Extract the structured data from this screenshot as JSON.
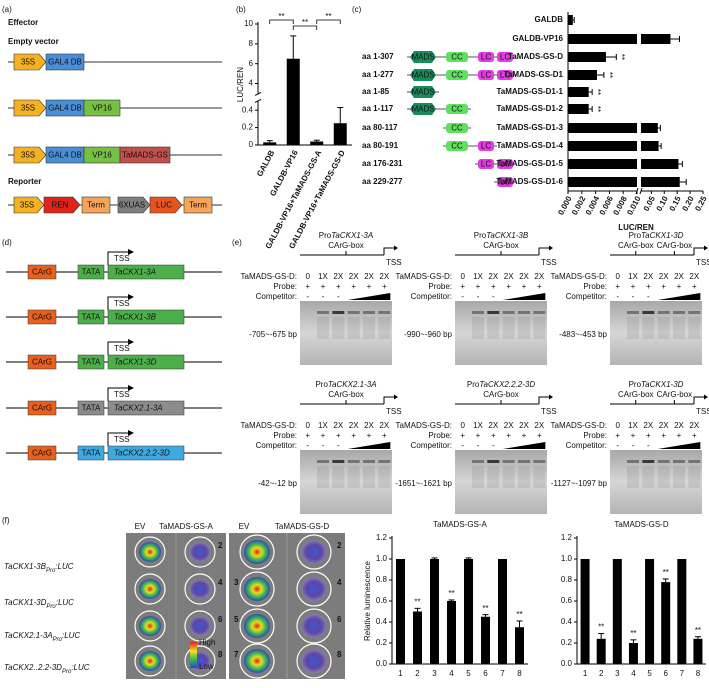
{
  "panel_labels": [
    "(a)",
    "(b)",
    "(c)",
    "(d)",
    "(e)",
    "(f)"
  ],
  "panel_a": {
    "effector": "Effector",
    "empty_vector": "Empty vector",
    "effectors": [
      [
        "35S",
        "GAL4 DB"
      ],
      [
        "35S",
        "GAL4 DB",
        "VP16"
      ],
      [
        "35S",
        "GAL4 DB",
        "VP16",
        "TaMADS-GS"
      ]
    ],
    "reporter": "Reporter",
    "reporter_parts": [
      "35S",
      "REN",
      "Term",
      "6XUAS",
      "LUC",
      "Term"
    ]
  },
  "panel_c_constructs": [
    {
      "label": "aa 1-307",
      "domains": [
        "MADS",
        "CC",
        "LC",
        "LC"
      ]
    },
    {
      "label": "aa 1-277",
      "domains": [
        "MADS",
        "CC",
        "LC",
        "LC"
      ]
    },
    {
      "label": "aa 1-85",
      "domains": [
        "MADS"
      ]
    },
    {
      "label": "aa 1-117",
      "domains": [
        "MADS",
        "CC"
      ]
    },
    {
      "label": "aa 80-117",
      "domains": [
        "CC"
      ]
    },
    {
      "label": "aa 80-191",
      "domains": [
        "CC",
        "LC"
      ]
    },
    {
      "label": "aa 176-231",
      "domains": [
        "LC",
        "LC"
      ]
    },
    {
      "label": "aa 229-277",
      "domains": [
        "LC"
      ]
    }
  ],
  "chart_data": [
    {
      "type": "bar",
      "ylabel": "LUC/REN",
      "categories": [
        "GALDB",
        "GALDB-VP16",
        "GALDB-VP16+TaMADS-GS-A",
        "GALDB-VP16+TaMADS-GS-D"
      ],
      "values": [
        0.03,
        6.5,
        0.04,
        0.25
      ],
      "errors": [
        0.02,
        2.3,
        0.015,
        0.18
      ],
      "significance": [
        "**",
        "**",
        "**"
      ],
      "color": "#000000",
      "ylim": [
        0,
        10
      ],
      "y_break": [
        0.5,
        3
      ],
      "yticks": [
        0,
        0.2,
        0.4,
        4,
        6,
        8,
        10
      ]
    },
    {
      "type": "hbar",
      "xlabel": "LUC/REN",
      "categories": [
        "GALDB",
        "GALDB-VP16",
        "TaMADS-GS-D",
        "TaMADS-GS-D1",
        "TaMADS-GS-D1-1",
        "TaMADS-GS-D1-2",
        "TaMADS-GS-D1-3",
        "TaMADS-GS-D1-4",
        "TaMADS-GS-D1-5",
        "TaMADS-GS-D1-6"
      ],
      "values": [
        0.0007,
        0.124,
        0.0055,
        0.0042,
        0.003,
        0.003,
        0.075,
        0.078,
        0.155,
        0.16
      ],
      "errors": [
        0.0002,
        0.035,
        0.0015,
        0.001,
        0.0005,
        0.0005,
        0.01,
        0.01,
        0.015,
        0.025
      ],
      "annotations": [
        null,
        null,
        "**",
        "**",
        "**",
        "**",
        null,
        null,
        null,
        null
      ],
      "color": "#000000",
      "xlim": [
        0,
        0.25
      ],
      "x_break": 0.01,
      "xticks": [
        {
          "value": 0,
          "label": "0.000"
        },
        0.002,
        0.004,
        0.006,
        0.008,
        {
          "value": 0.01,
          "label": "0.010"
        },
        0.05,
        {
          "value": 0.1,
          "label": "0.10"
        },
        0.15,
        {
          "value": 0.2,
          "label": "0.20"
        },
        0.25
      ]
    },
    {
      "type": "bar",
      "title": "TaMADS-GS-A",
      "ylabel": "Relative luminescence",
      "categories": [
        "1",
        "2",
        "3",
        "4",
        "5",
        "6",
        "7",
        "8"
      ],
      "values": [
        1,
        0.5,
        1,
        0.6,
        1,
        0.45,
        1,
        0.35
      ],
      "errors": [
        0,
        0.03,
        0.01,
        0.01,
        0.01,
        0.02,
        0,
        0.06
      ],
      "annotations": [
        null,
        "**",
        null,
        "**",
        null,
        "**",
        null,
        "**"
      ],
      "color": "#000000",
      "ylim": [
        0,
        1.2
      ],
      "yticks": [
        {
          "value": 0,
          "label": "0.0"
        },
        0.2,
        0.4,
        0.6,
        0.8,
        {
          "value": 1,
          "label": "1.0"
        },
        1.2
      ]
    },
    {
      "type": "bar",
      "title": "TaMADS-GS-D",
      "categories": [
        "1",
        "2",
        "3",
        "4",
        "5",
        "6",
        "7",
        "8"
      ],
      "values": [
        1,
        0.24,
        1,
        0.2,
        1,
        0.78,
        1,
        0.24
      ],
      "errors": [
        0,
        0.05,
        0,
        0.03,
        0,
        0.03,
        0,
        0.02
      ],
      "annotations": [
        null,
        "**",
        null,
        "**",
        null,
        "**",
        null,
        "**"
      ],
      "color": "#000000",
      "ylim": [
        0,
        1.2
      ],
      "yticks": [
        {
          "value": 0,
          "label": "0.0"
        },
        0.2,
        0.4,
        0.6,
        0.8,
        {
          "value": 1,
          "label": "1.0"
        },
        1.2
      ]
    }
  ],
  "panel_d": {
    "tss": "TSS",
    "promoters": [
      {
        "carg": "CArG",
        "tata": "TATA",
        "gene": "TaCKX1-3A"
      },
      {
        "carg": "CArG",
        "tata": "TATA",
        "gene": "TaCKX1-3B"
      },
      {
        "carg": "CArG",
        "tata": "TATA",
        "gene": "TaCKX1-3D"
      },
      {
        "carg": "CArG",
        "tata": "TATA",
        "gene": "TaCKX2.1-3A"
      },
      {
        "carg": "CArG",
        "tata": "TATA",
        "gene": "TaCKX2.2.2-3D"
      }
    ]
  },
  "panel_e": {
    "row_labels": [
      "TaMADS-GS-D:",
      "Probe:",
      "Competitor:"
    ],
    "doses": [
      "0",
      "1X",
      "2X",
      "2X",
      "2X",
      "2X"
    ],
    "probe": [
      "+",
      "+",
      "+",
      "+",
      "+",
      "+"
    ],
    "competitor": [
      "-",
      "-",
      "-"
    ],
    "tss": "TSS",
    "gels": [
      {
        "prefix": "Pro",
        "gene": "TaCKX1-3A",
        "boxes": [
          "CArG-box"
        ],
        "probe_region": "-705~-675 bp"
      },
      {
        "prefix": "Pro",
        "gene": "TaCKX1-3B",
        "boxes": [
          "CArG-box"
        ],
        "probe_region": "-990~-960 bp"
      },
      {
        "prefix": "Pro",
        "gene": "TaCKX1-3D",
        "boxes": [
          "CArG-box",
          "CArG-box"
        ],
        "probe_region": "-483~-453 bp"
      },
      {
        "prefix": "Pro",
        "gene": "TaCKX2.1-3A",
        "boxes": [
          "CArG-box"
        ],
        "probe_region": "-42~-12 bp"
      },
      {
        "prefix": "Pro",
        "gene": "TaCKX2.2.2-3D",
        "boxes": [
          "CArG-box"
        ],
        "probe_region": "-1651~-1621 bp"
      },
      {
        "prefix": "Pro",
        "gene": "TaCKX1-3D",
        "boxes": [
          "CArG-box",
          "CArG-box"
        ],
        "probe_region": "-1127~-1097 bp"
      }
    ]
  },
  "panel_f": {
    "headers": [
      "EV",
      "TaMADS-GS-A",
      "EV",
      "TaMADS-GS-D"
    ],
    "rows": [
      {
        "gene": "TaCKX1-3B",
        "sub": "Pro",
        "suffix": ":LUC"
      },
      {
        "gene": "TaCKX1-3D",
        "sub": "Pro",
        "suffix": ":LUC"
      },
      {
        "gene": "TaCKX2.1-3A",
        "sub": "Pro",
        "suffix": ":LUC"
      },
      {
        "gene": "TaCKX2..2.2-3D",
        "sub": "Pro",
        "suffix": ":LUC"
      }
    ],
    "left_numbers": [
      "2",
      "4",
      "6",
      "8"
    ],
    "right_numbers": [
      "2",
      "3",
      "4",
      "5",
      "6",
      "7",
      "8"
    ],
    "scale": [
      "High",
      "Low"
    ]
  }
}
